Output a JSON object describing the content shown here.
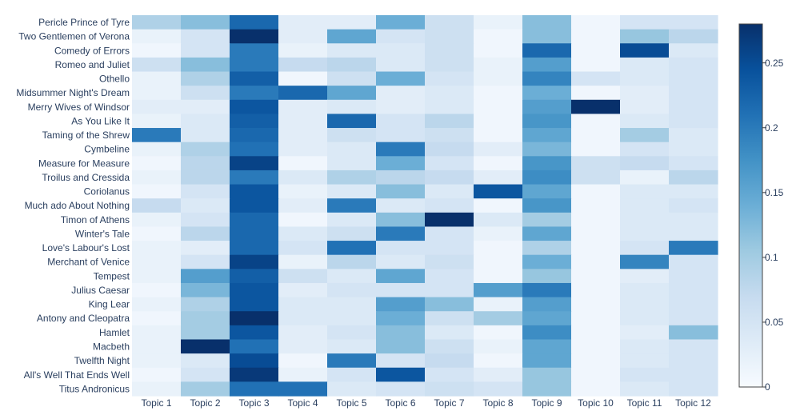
{
  "chart_data": {
    "type": "heatmap",
    "x": [
      "Topic 1",
      "Topic 2",
      "Topic 3",
      "Topic 4",
      "Topic 5",
      "Topic 6",
      "Topic 7",
      "Topic 8",
      "Topic 9",
      "Topic 10",
      "Topic 11",
      "Topic 12"
    ],
    "y": [
      "Pericle Prince of Tyre",
      "Two Gentlemen of Verona",
      "Comedy of Errors",
      "Romeo and Juliet",
      "Othello",
      "Midsummer Night's Dream",
      "Merry Wives of Windsor",
      "As You Like It",
      "Taming of the Shrew",
      "Cymbeline",
      "Measure for Measure",
      "Troilus and Cressida",
      "Coriolanus",
      "Much ado About Nothing",
      "Timon of Athens",
      "Winter's Tale",
      "Love's Labour's Lost",
      "Merchant of Venice",
      "Tempest",
      "Julius Caesar",
      "King Lear",
      "Antony and Cleopatra",
      "Hamlet",
      "Macbeth",
      "Twelfth Night",
      "All's Well That Ends Well",
      "Titus Andronicus"
    ],
    "z": [
      [
        0.09,
        0.12,
        0.22,
        0.03,
        0.03,
        0.14,
        0.06,
        0.02,
        0.12,
        0.01,
        0.05,
        0.05
      ],
      [
        0.02,
        0.05,
        0.28,
        0.03,
        0.15,
        0.05,
        0.06,
        0.01,
        0.12,
        0.01,
        0.11,
        0.08
      ],
      [
        0.01,
        0.05,
        0.2,
        0.02,
        0.04,
        0.04,
        0.06,
        0.01,
        0.22,
        0.01,
        0.25,
        0.04
      ],
      [
        0.06,
        0.12,
        0.2,
        0.07,
        0.08,
        0.04,
        0.06,
        0.02,
        0.16,
        0.01,
        0.04,
        0.05
      ],
      [
        0.02,
        0.09,
        0.23,
        0.01,
        0.06,
        0.14,
        0.05,
        0.02,
        0.19,
        0.05,
        0.04,
        0.05
      ],
      [
        0.02,
        0.06,
        0.2,
        0.22,
        0.15,
        0.03,
        0.04,
        0.01,
        0.14,
        0.01,
        0.03,
        0.05
      ],
      [
        0.03,
        0.03,
        0.24,
        0.03,
        0.04,
        0.03,
        0.04,
        0.01,
        0.16,
        0.28,
        0.03,
        0.05
      ],
      [
        0.02,
        0.04,
        0.23,
        0.03,
        0.22,
        0.05,
        0.08,
        0.01,
        0.17,
        0.01,
        0.04,
        0.05
      ],
      [
        0.2,
        0.04,
        0.22,
        0.03,
        0.06,
        0.05,
        0.06,
        0.01,
        0.15,
        0.01,
        0.1,
        0.04
      ],
      [
        0.02,
        0.09,
        0.21,
        0.03,
        0.04,
        0.2,
        0.07,
        0.03,
        0.13,
        0.01,
        0.05,
        0.04
      ],
      [
        0.01,
        0.08,
        0.26,
        0.01,
        0.04,
        0.14,
        0.05,
        0.01,
        0.17,
        0.06,
        0.07,
        0.05
      ],
      [
        0.02,
        0.08,
        0.2,
        0.04,
        0.09,
        0.08,
        0.07,
        0.03,
        0.18,
        0.06,
        0.02,
        0.08
      ],
      [
        0.01,
        0.05,
        0.24,
        0.02,
        0.04,
        0.12,
        0.04,
        0.24,
        0.15,
        0.01,
        0.04,
        0.04
      ],
      [
        0.07,
        0.04,
        0.24,
        0.03,
        0.2,
        0.04,
        0.05,
        0.01,
        0.17,
        0.01,
        0.04,
        0.05
      ],
      [
        0.02,
        0.05,
        0.22,
        0.01,
        0.04,
        0.12,
        0.28,
        0.04,
        0.1,
        0.01,
        0.04,
        0.04
      ],
      [
        0.01,
        0.08,
        0.22,
        0.04,
        0.06,
        0.2,
        0.05,
        0.02,
        0.15,
        0.01,
        0.04,
        0.04
      ],
      [
        0.02,
        0.03,
        0.22,
        0.05,
        0.21,
        0.05,
        0.05,
        0.01,
        0.09,
        0.01,
        0.05,
        0.2
      ],
      [
        0.02,
        0.05,
        0.26,
        0.02,
        0.08,
        0.04,
        0.06,
        0.01,
        0.14,
        0.01,
        0.19,
        0.05
      ],
      [
        0.02,
        0.16,
        0.23,
        0.06,
        0.04,
        0.15,
        0.05,
        0.01,
        0.11,
        0.01,
        0.03,
        0.05
      ],
      [
        0.01,
        0.13,
        0.24,
        0.03,
        0.05,
        0.05,
        0.05,
        0.16,
        0.2,
        0.01,
        0.04,
        0.05
      ],
      [
        0.02,
        0.09,
        0.24,
        0.04,
        0.04,
        0.16,
        0.12,
        0.02,
        0.16,
        0.01,
        0.04,
        0.05
      ],
      [
        0.01,
        0.1,
        0.28,
        0.04,
        0.04,
        0.14,
        0.06,
        0.1,
        0.15,
        0.01,
        0.04,
        0.05
      ],
      [
        0.02,
        0.1,
        0.24,
        0.03,
        0.05,
        0.12,
        0.04,
        0.01,
        0.18,
        0.01,
        0.03,
        0.12
      ],
      [
        0.02,
        0.28,
        0.21,
        0.03,
        0.04,
        0.12,
        0.06,
        0.02,
        0.15,
        0.01,
        0.04,
        0.05
      ],
      [
        0.02,
        0.04,
        0.25,
        0.01,
        0.2,
        0.05,
        0.07,
        0.01,
        0.15,
        0.01,
        0.04,
        0.05
      ],
      [
        0.01,
        0.05,
        0.27,
        0.02,
        0.05,
        0.24,
        0.05,
        0.03,
        0.11,
        0.01,
        0.05,
        0.05
      ],
      [
        0.02,
        0.1,
        0.21,
        0.21,
        0.04,
        0.05,
        0.06,
        0.05,
        0.11,
        0.01,
        0.04,
        0.05
      ]
    ],
    "zlim": [
      0,
      0.28
    ],
    "colorbar_ticks": [
      {
        "value": 0,
        "label": "0"
      },
      {
        "value": 0.05,
        "label": "0.05"
      },
      {
        "value": 0.1,
        "label": "0.1"
      },
      {
        "value": 0.15,
        "label": "0.15"
      },
      {
        "value": 0.2,
        "label": "0.2"
      },
      {
        "value": 0.25,
        "label": "0.25"
      }
    ],
    "colorscale": [
      "#f7fbff",
      "#deebf7",
      "#c6dbef",
      "#9ecae1",
      "#6baed6",
      "#4292c6",
      "#2171b5",
      "#08519c",
      "#08306b"
    ],
    "title": "",
    "xlabel": "",
    "ylabel": ""
  }
}
